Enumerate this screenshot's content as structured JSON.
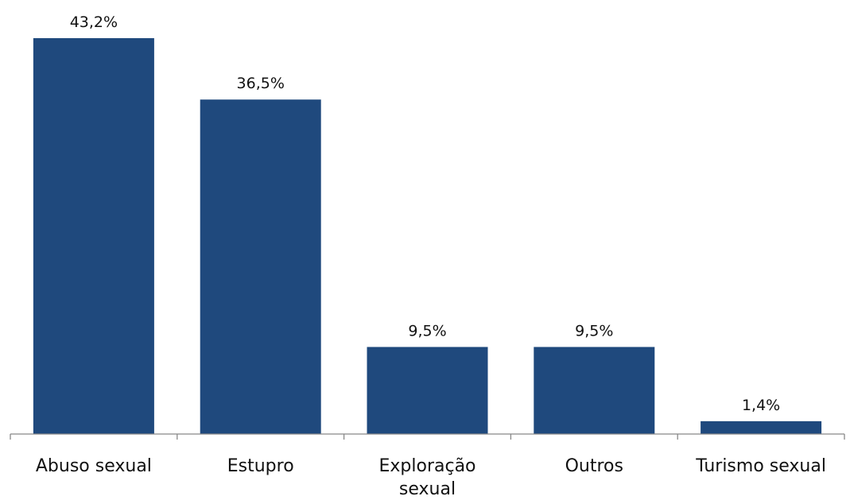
{
  "chart_data": {
    "type": "bar",
    "title": "",
    "xlabel": "",
    "ylabel": "",
    "ylim": [
      0,
      45
    ],
    "grid": false,
    "legend": "none",
    "bar_color": "#1F497D",
    "categories": [
      "Abuso sexual",
      "Estupro",
      "Exploração sexual",
      "Outros",
      "Turismo sexual"
    ],
    "category_lines": [
      [
        "Abuso sexual"
      ],
      [
        "Estupro"
      ],
      [
        "Exploração",
        "sexual"
      ],
      [
        "Outros"
      ],
      [
        "Turismo sexual"
      ]
    ],
    "values": [
      43.2,
      36.5,
      9.5,
      9.5,
      1.4
    ],
    "value_labels": [
      "43,2%",
      "36,5%",
      "9,5%",
      "9,5%",
      "1,4%"
    ]
  }
}
